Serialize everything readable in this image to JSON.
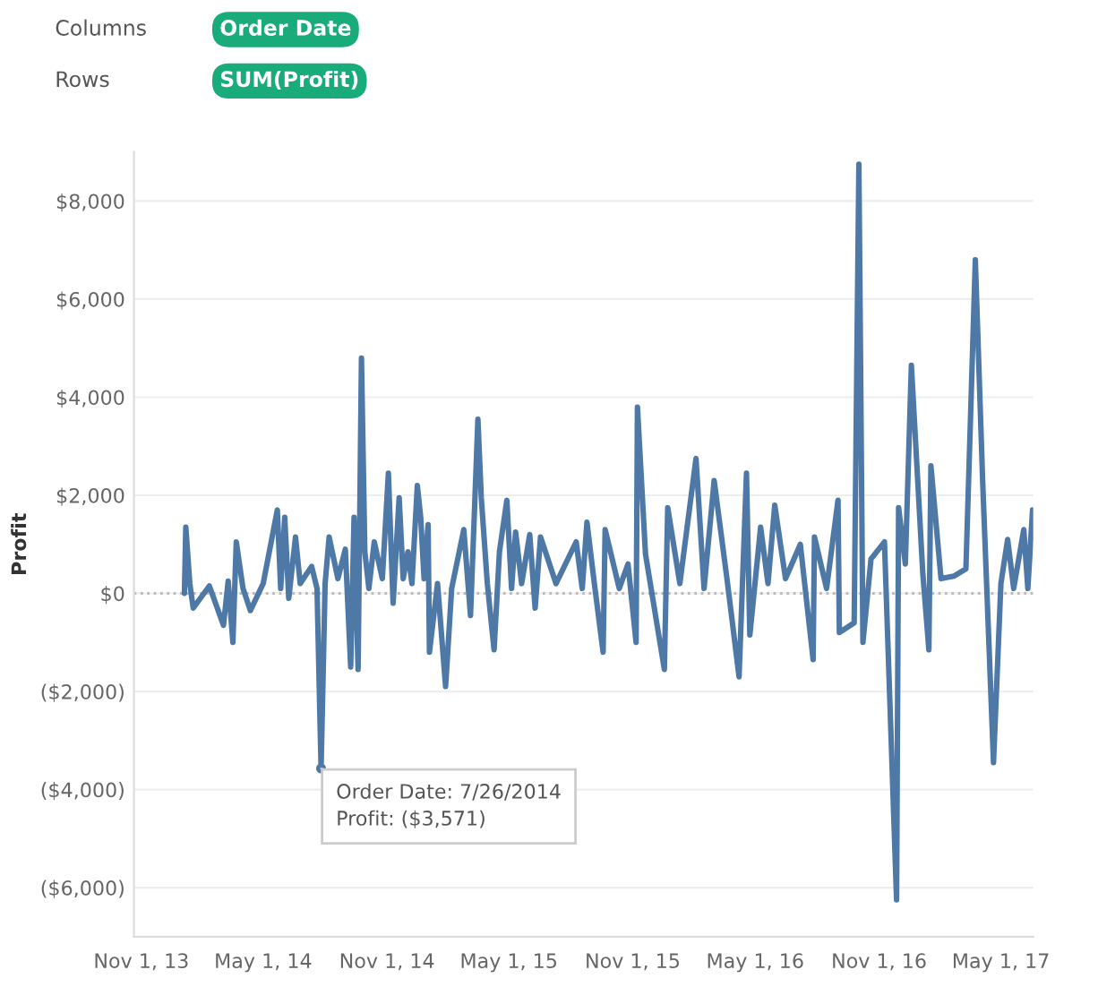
{
  "chart_data": {
    "type": "line",
    "ylabel": "Profit",
    "x": [
      "2014-01-04",
      "2014-01-06",
      "2014-01-12",
      "2014-01-17",
      "2014-02-10",
      "2014-03-03",
      "2014-03-10",
      "2014-03-17",
      "2014-03-22",
      "2014-04-01",
      "2014-04-12",
      "2014-05-01",
      "2014-05-22",
      "2014-05-27",
      "2014-06-02",
      "2014-06-08",
      "2014-06-18",
      "2014-06-25",
      "2014-07-12",
      "2014-07-20",
      "2014-07-26",
      "2014-08-01",
      "2014-08-07",
      "2014-08-20",
      "2014-08-31",
      "2014-09-08",
      "2014-09-13",
      "2014-09-19",
      "2014-09-24",
      "2014-09-29",
      "2014-10-05",
      "2014-10-13",
      "2014-10-25",
      "2014-11-03",
      "2014-11-10",
      "2014-11-19",
      "2014-11-25",
      "2014-12-02",
      "2014-12-08",
      "2014-12-16",
      "2014-12-21",
      "2014-12-26",
      "2015-01-01",
      "2015-01-03",
      "2015-01-15",
      "2015-01-27",
      "2015-02-05",
      "2015-02-23",
      "2015-03-05",
      "2015-03-16",
      "2015-03-21",
      "2015-03-30",
      "2015-04-09",
      "2015-04-17",
      "2015-04-28",
      "2015-05-05",
      "2015-05-11",
      "2015-05-20",
      "2015-06-01",
      "2015-06-09",
      "2015-06-17",
      "2015-07-10",
      "2015-08-09",
      "2015-08-18",
      "2015-08-25",
      "2015-09-05",
      "2015-09-18",
      "2015-09-21",
      "2015-10-12",
      "2015-10-25",
      "2015-11-06",
      "2015-11-08",
      "2015-11-20",
      "2015-12-18",
      "2015-12-23",
      "2016-01-10",
      "2016-02-03",
      "2016-02-15",
      "2016-03-01",
      "2016-03-20",
      "2016-04-07",
      "2016-04-18",
      "2016-04-23",
      "2016-05-09",
      "2016-05-20",
      "2016-05-30",
      "2016-06-15",
      "2016-07-07",
      "2016-07-26",
      "2016-07-28",
      "2016-08-15",
      "2016-09-01",
      "2016-09-03",
      "2016-09-25",
      "2016-10-02",
      "2016-10-08",
      "2016-10-20",
      "2016-11-09",
      "2016-11-27",
      "2016-11-30",
      "2016-12-10",
      "2016-12-19",
      "2017-01-05",
      "2017-01-14",
      "2017-01-17",
      "2017-02-01",
      "2017-02-20",
      "2017-03-10",
      "2017-03-24",
      "2017-04-04",
      "2017-04-20",
      "2017-05-01",
      "2017-05-11",
      "2017-05-20",
      "2017-06-04",
      "2017-06-10",
      "2017-06-17"
    ],
    "series": [
      {
        "color": "#4e79a7",
        "values": [
          0,
          1350,
          200,
          -300,
          150,
          -650,
          250,
          -1000,
          1050,
          100,
          -350,
          200,
          1700,
          100,
          1550,
          -100,
          1150,
          200,
          550,
          100,
          -3571,
          200,
          1150,
          300,
          900,
          -1500,
          1550,
          -1550,
          4800,
          850,
          100,
          1050,
          300,
          2450,
          -200,
          1950,
          300,
          850,
          200,
          2200,
          1550,
          300,
          1400,
          -1200,
          200,
          -1900,
          100,
          1300,
          -450,
          3550,
          1950,
          200,
          -1150,
          850,
          1900,
          100,
          1250,
          200,
          1200,
          -300,
          1150,
          200,
          1050,
          100,
          1450,
          200,
          -1200,
          1300,
          100,
          600,
          -1000,
          3800,
          800,
          -1550,
          1750,
          200,
          2750,
          100,
          2300,
          300,
          -1700,
          2450,
          -850,
          1350,
          200,
          1800,
          300,
          1000,
          -1350,
          1150,
          100,
          1900,
          -800,
          -600,
          8750,
          -1000,
          700,
          1050,
          -6250,
          1750,
          600,
          4650,
          400,
          -1150,
          2600,
          300,
          350,
          500,
          6800,
          2250,
          -3450,
          200,
          1100,
          100,
          1300,
          100,
          1700
        ]
      }
    ],
    "xlim": [
      "2013-10-21",
      "2017-06-18"
    ],
    "xticks": [
      {
        "value": "2013-11-01",
        "label": "Nov 1, 13"
      },
      {
        "value": "2014-05-01",
        "label": "May 1, 14"
      },
      {
        "value": "2014-11-01",
        "label": "Nov 1, 14"
      },
      {
        "value": "2015-05-01",
        "label": "May 1, 15"
      },
      {
        "value": "2015-11-01",
        "label": "Nov 1, 15"
      },
      {
        "value": "2016-05-01",
        "label": "May 1, 16"
      },
      {
        "value": "2016-11-01",
        "label": "Nov 1, 16"
      },
      {
        "value": "2017-05-01",
        "label": "May 1, 17"
      }
    ],
    "ylim": [
      -7000,
      9000
    ],
    "yticks": [
      {
        "value": -6000,
        "label": "($6,000)"
      },
      {
        "value": -4000,
        "label": "($4,000)"
      },
      {
        "value": -2000,
        "label": "($2,000)"
      },
      {
        "value": 0,
        "label": "$0"
      },
      {
        "value": 2000,
        "label": "$2,000"
      },
      {
        "value": 4000,
        "label": "$4,000"
      },
      {
        "value": 6000,
        "label": "$6,000"
      },
      {
        "value": 8000,
        "label": "$8,000"
      }
    ],
    "grid": "y",
    "line_style": "solid",
    "ref_lines": [
      {
        "axis": "y",
        "value": 0,
        "color": "#bbbbbb",
        "line_style": "dotted"
      }
    ],
    "annotations": [
      "Columns",
      "Order Date",
      "Rows",
      "SUM(Profit)",
      {
        "text": "Order Date: 7/26/2014\nProfit: ($3,571)",
        "x": "2014-07-26",
        "y": -3571
      }
    ]
  }
}
